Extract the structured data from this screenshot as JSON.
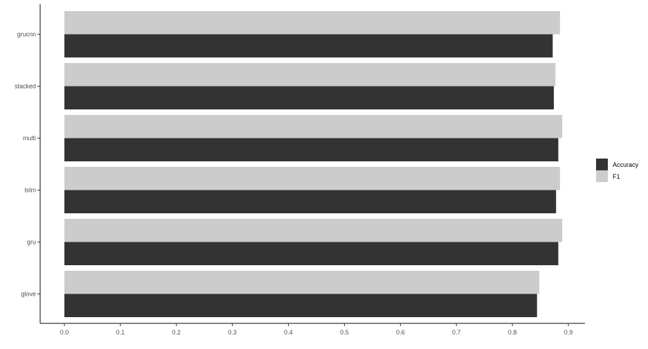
{
  "chart_data": {
    "type": "bar",
    "orientation": "horizontal",
    "categories": [
      "grucnn",
      "stacked",
      "multi",
      "lstm",
      "gru",
      "glove"
    ],
    "series": [
      {
        "name": "Accuracy",
        "color": "#333333",
        "values": [
          0.872,
          0.874,
          0.882,
          0.878,
          0.882,
          0.844
        ]
      },
      {
        "name": "F1",
        "color": "#cccccc",
        "values": [
          0.885,
          0.877,
          0.889,
          0.885,
          0.889,
          0.848
        ]
      }
    ],
    "x_ticks": [
      "0.0",
      "0.1",
      "0.2",
      "0.3",
      "0.4",
      "0.5",
      "0.6",
      "0.7",
      "0.8",
      "0.9"
    ],
    "xlim": [
      0,
      0.93
    ],
    "title": "",
    "xlabel": "",
    "ylabel": "",
    "grid": false,
    "legend_position": "right"
  }
}
